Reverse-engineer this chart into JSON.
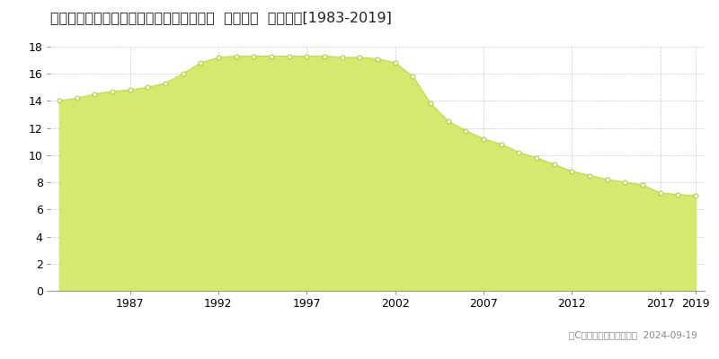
{
  "title": "香川県坂出市入船町１丁目３２２番７６外  公示地価  地価推移[1983-2019]",
  "years": [
    1983,
    1984,
    1985,
    1986,
    1987,
    1988,
    1989,
    1990,
    1991,
    1992,
    1993,
    1994,
    1995,
    1996,
    1997,
    1998,
    1999,
    2000,
    2001,
    2002,
    2003,
    2004,
    2005,
    2006,
    2007,
    2008,
    2009,
    2010,
    2011,
    2012,
    2013,
    2014,
    2015,
    2016,
    2017,
    2018,
    2019
  ],
  "values": [
    14.0,
    14.2,
    14.5,
    14.7,
    14.8,
    15.0,
    15.3,
    16.0,
    16.8,
    17.2,
    17.3,
    17.3,
    17.3,
    17.3,
    17.3,
    17.3,
    17.2,
    17.2,
    17.1,
    16.8,
    15.8,
    13.8,
    12.5,
    11.8,
    11.2,
    10.8,
    10.2,
    9.8,
    9.3,
    8.8,
    8.5,
    8.2,
    8.0,
    7.8,
    7.2,
    7.1,
    7.0
  ],
  "fill_color": "#d4e96f",
  "line_color": "#c8e040",
  "marker_color": "#ffffff",
  "marker_edge_color": "#b8cc30",
  "bg_color": "#ffffff",
  "plot_bg_color": "#ffffff",
  "grid_color": "#cccccc",
  "ylim": [
    0,
    18
  ],
  "yticks": [
    0,
    2,
    4,
    6,
    8,
    10,
    12,
    14,
    16,
    18
  ],
  "xtick_years": [
    1987,
    1992,
    1997,
    2002,
    2007,
    2012,
    2017,
    2019
  ],
  "title_fontsize": 11.5,
  "tick_fontsize": 9,
  "legend_fontsize": 9,
  "copyright_text": "（C）土地価格ドットコム  2024-09-19",
  "copyright_fontsize": 7.5,
  "legend_square_color": "#d4e96f",
  "legend_square_edge": "#b8cc30"
}
